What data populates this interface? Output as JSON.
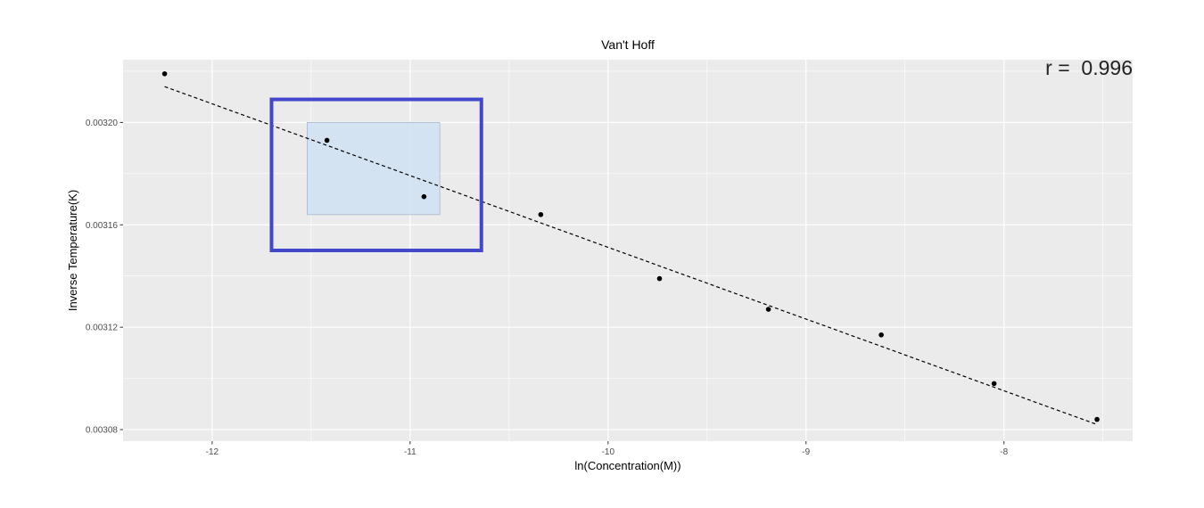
{
  "chart_data": {
    "type": "scatter",
    "title": "Van't Hoff",
    "xlabel": "ln(Concentration(M))",
    "ylabel": "Inverse Temperature(K)",
    "xlim": [
      -12.45,
      -7.35
    ],
    "ylim": [
      0.0030755,
      0.0032245
    ],
    "x_ticks": [
      -12,
      -11,
      -10,
      -9,
      -8
    ],
    "x_tick_labels": [
      "-12",
      "-11",
      "-10",
      "-9",
      "-8"
    ],
    "y_ticks": [
      0.00308,
      0.00312,
      0.00316,
      0.0032
    ],
    "y_tick_labels": [
      "0.00308",
      "0.00312",
      "0.00316",
      "0.00320"
    ],
    "grid": true,
    "points": {
      "x": [
        -12.24,
        -11.42,
        -10.93,
        -10.34,
        -9.74,
        -9.19,
        -8.62,
        -8.05,
        -7.53
      ],
      "y": [
        0.003219,
        0.003193,
        0.003171,
        0.003164,
        0.003139,
        0.003127,
        0.003117,
        0.003098,
        0.003084
      ]
    },
    "fit_line": {
      "style": "dashed",
      "x": [
        -12.24,
        -7.53
      ],
      "y": [
        0.003214,
        0.003082
      ]
    },
    "annotation": {
      "text": "r =  0.996",
      "position": "top-right"
    },
    "highlight": {
      "shaded_region": {
        "x": [
          -11.52,
          -10.85
        ],
        "y": [
          0.003164,
          0.0032
        ]
      },
      "outline_box": {
        "x": [
          -11.7,
          -10.64
        ],
        "y": [
          0.00315,
          0.003209
        ]
      }
    },
    "colors": {
      "panel_background": "#ebebeb",
      "grid_line": "#ffffff",
      "point": "#000000",
      "fit_line": "#000000",
      "highlight_fill": "#cfe2f3",
      "highlight_outline": "#4347c9"
    }
  }
}
